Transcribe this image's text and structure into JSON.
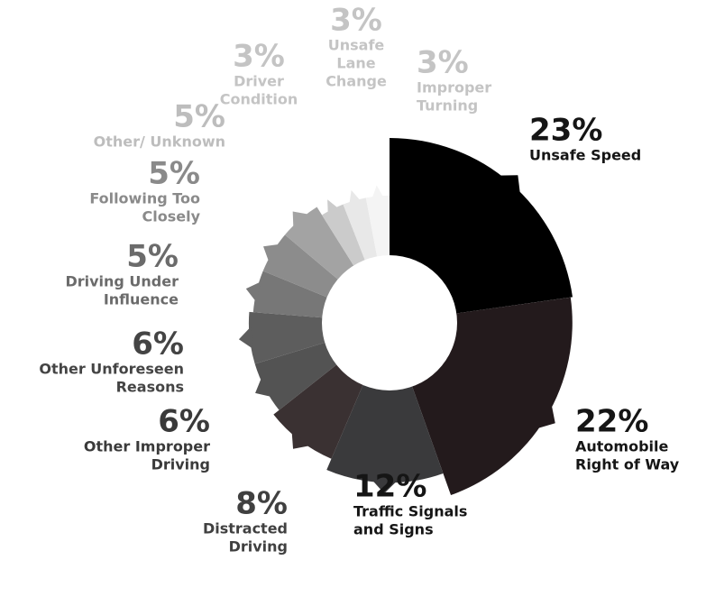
{
  "chart_data": {
    "type": "pie",
    "variant": "rose",
    "legend": "none",
    "categories": [
      "Unsafe Speed",
      "Automobile Right of Way",
      "Traffic Signals and Signs",
      "Distracted Driving",
      "Other Improper Driving",
      "Other Unforeseen Reasons",
      "Driving Under Influence",
      "Following Too Closely",
      "Other/ Unknown",
      "Driver Condition",
      "Unsafe Lane Change",
      "Improper Turning"
    ],
    "values": [
      23,
      22,
      12,
      8,
      6,
      6,
      5,
      5,
      5,
      3,
      3,
      3
    ],
    "percent_labels": [
      "23%",
      "22%",
      "12%",
      "8%",
      "6%",
      "6%",
      "5%",
      "5%",
      "5%",
      "3%",
      "3%",
      "3%"
    ],
    "label_lines": [
      [
        "Unsafe Speed"
      ],
      [
        "Automobile",
        "Right of Way"
      ],
      [
        "Traffic Signals",
        "and Signs"
      ],
      [
        "Distracted",
        "Driving"
      ],
      [
        "Other Improper",
        "Driving"
      ],
      [
        "Other Unforeseen",
        "Reasons"
      ],
      [
        "Driving Under",
        "Influence"
      ],
      [
        "Following Too",
        "Closely"
      ],
      [
        "Other/ Unknown"
      ],
      [
        "Driver",
        "Condition"
      ],
      [
        "Unsafe",
        "Lane",
        "Change"
      ],
      [
        "Improper",
        "Turning"
      ]
    ],
    "colors": [
      "#000000",
      "#231a1c",
      "#3a3a3c",
      "#3a3132",
      "#535353",
      "#5d5d5d",
      "#777777",
      "#8c8c8c",
      "#a3a3a3",
      "#cbcbcb",
      "#e8e8e8",
      "#f4f4f4"
    ],
    "label_colors": [
      "#151515",
      "#151515",
      "#151515",
      "#404040",
      "#3a3a3a",
      "#444444",
      "#6b6b6b",
      "#8a8a8a",
      "#bdbdbd",
      "#c4c4c4",
      "#c4c4c4",
      "#c4c4c4"
    ]
  }
}
